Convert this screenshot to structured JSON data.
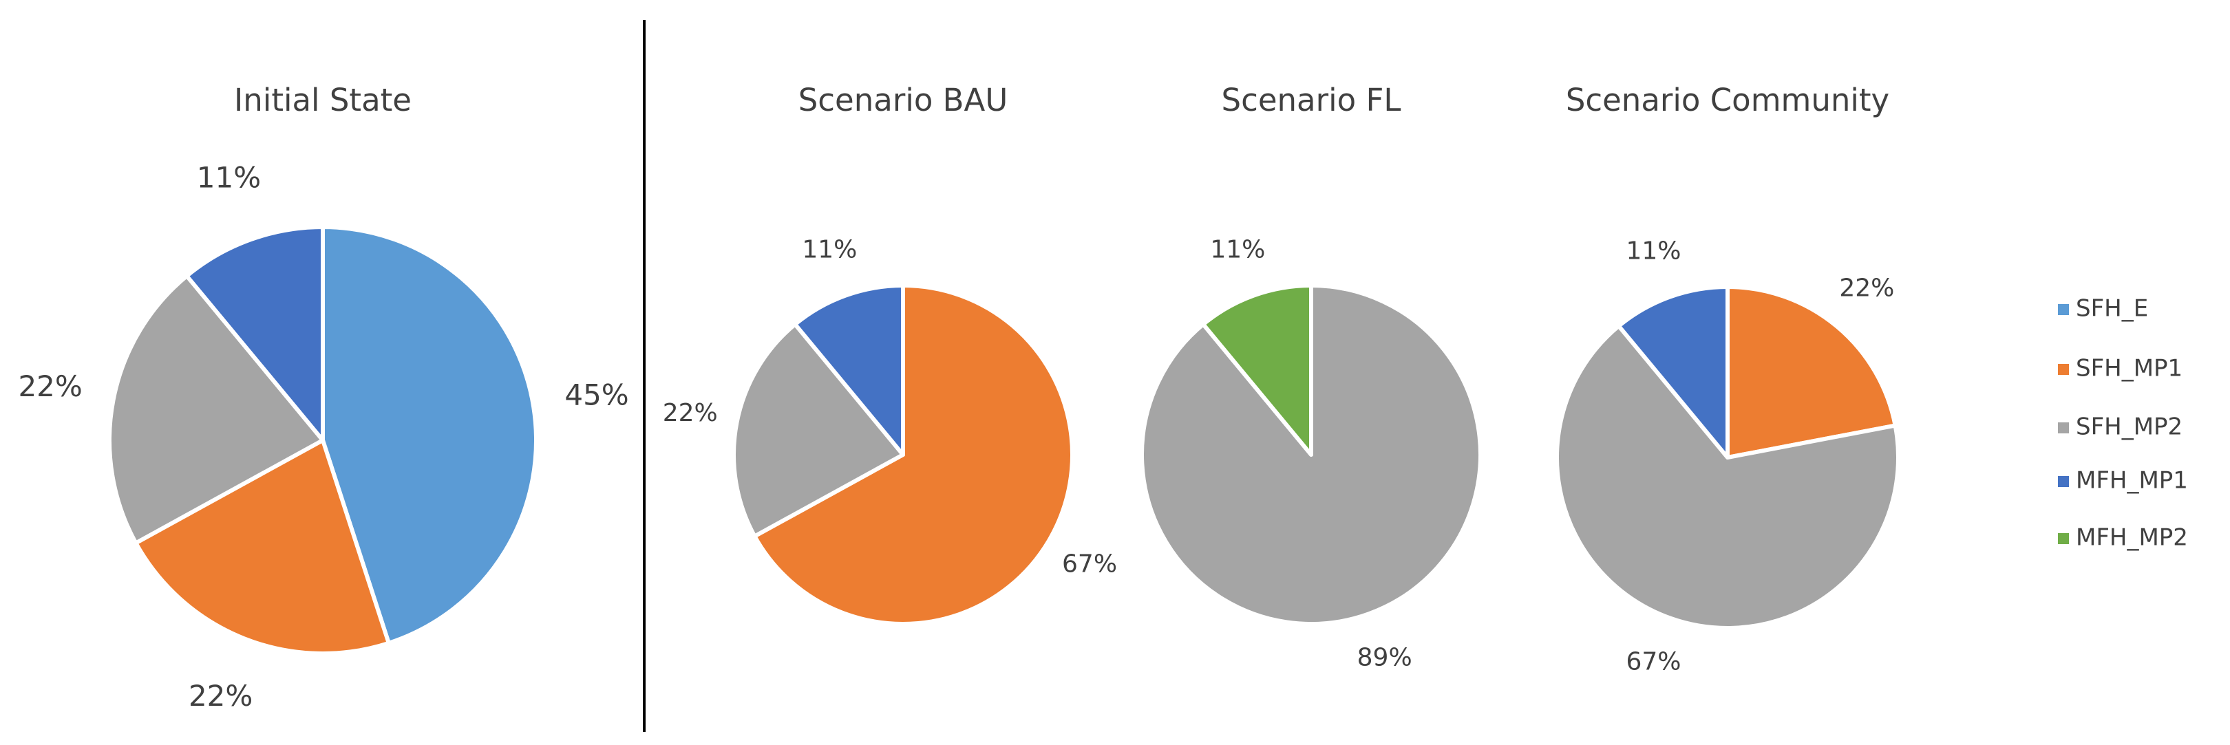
{
  "chart_data": [
    {
      "type": "pie",
      "title": "Initial State",
      "categories": [
        "SFH_E",
        "SFH_MP1",
        "SFH_MP2",
        "MFH_MP1"
      ],
      "values": [
        45,
        22,
        22,
        11
      ],
      "value_labels": [
        "45%",
        "22%",
        "22%",
        "11%"
      ],
      "colors": [
        "#5b9bd5",
        "#ed7d31",
        "#a5a5a5",
        "#4472c4"
      ]
    },
    {
      "type": "pie",
      "title": "Scenario BAU",
      "categories": [
        "SFH_MP1",
        "SFH_MP2",
        "MFH_MP1"
      ],
      "values": [
        67,
        22,
        11
      ],
      "value_labels": [
        "67%",
        "22%",
        "11%"
      ],
      "colors": [
        "#ed7d31",
        "#a5a5a5",
        "#4472c4"
      ]
    },
    {
      "type": "pie",
      "title": "Scenario FL",
      "categories": [
        "SFH_MP2",
        "MFH_MP2"
      ],
      "values": [
        89,
        11
      ],
      "value_labels": [
        "89%",
        "11%"
      ],
      "colors": [
        "#a5a5a5",
        "#70ad47"
      ]
    },
    {
      "type": "pie",
      "title": "Scenario Community",
      "categories": [
        "SFH_MP1",
        "SFH_MP2",
        "MFH_MP1"
      ],
      "values": [
        22,
        67,
        11
      ],
      "value_labels": [
        "22%",
        "67%",
        "11%"
      ],
      "colors": [
        "#ed7d31",
        "#a5a5a5",
        "#4472c4"
      ]
    }
  ],
  "legend": [
    {
      "name": "SFH_E",
      "color": "#5b9bd5"
    },
    {
      "name": "SFH_MP1",
      "color": "#ed7d31"
    },
    {
      "name": "SFH_MP2",
      "color": "#a5a5a5"
    },
    {
      "name": "MFH_MP1",
      "color": "#4472c4"
    },
    {
      "name": "MFH_MP2",
      "color": "#70ad47"
    }
  ]
}
